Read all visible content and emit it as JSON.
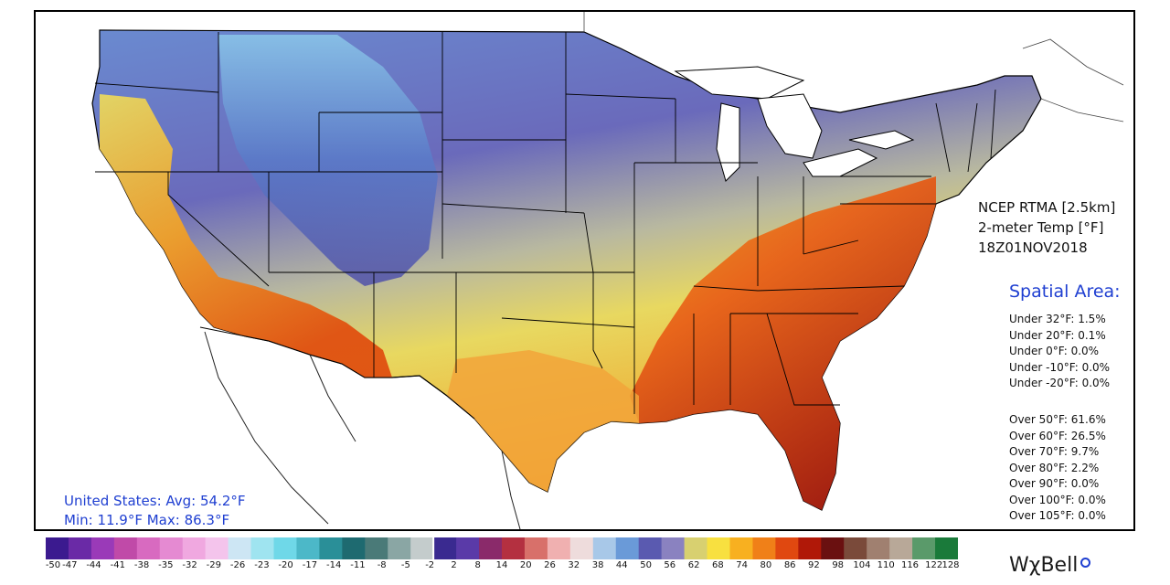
{
  "product": {
    "line1": "NCEP RTMA [2.5km]",
    "line2": "2-meter Temp [°F]",
    "line3": "18Z01NOV2018"
  },
  "spatial_area": {
    "title": "Spatial Area:",
    "under": [
      "Under 32°F: 1.5%",
      "Under 20°F: 0.1%",
      "Under 0°F: 0.0%",
      "Under -10°F: 0.0%",
      "Under -20°F: 0.0%"
    ],
    "over": [
      "Over 50°F: 61.6%",
      "Over 60°F: 26.5%",
      "Over 70°F: 9.7%",
      "Over 80°F: 2.2%",
      "Over 90°F: 0.0%",
      "Over 100°F: 0.0%",
      "Over 105°F: 0.0%"
    ]
  },
  "us_stats": {
    "line1": "United States: Avg:  54.2°F",
    "line2": "Min:  11.9°F Max:  86.3°F"
  },
  "colorbar": {
    "labels": [
      "-50",
      "-47",
      "-44",
      "-41",
      "-38",
      "-35",
      "-32",
      "-29",
      "-26",
      "-23",
      "-20",
      "-17",
      "-14",
      "-11",
      "-8",
      "-5",
      "-2",
      "2",
      "8",
      "14",
      "20",
      "26",
      "32",
      "38",
      "44",
      "50",
      "56",
      "62",
      "68",
      "74",
      "80",
      "86",
      "92",
      "98",
      "104",
      "110",
      "116",
      "122",
      "128"
    ],
    "stops": [
      "#3b1a8f",
      "#6a2aa6",
      "#9a3ab8",
      "#c04aa8",
      "#d86ac0",
      "#e58ad2",
      "#f0a8e0",
      "#f4c4ec",
      "#cde6f4",
      "#9fe4f0",
      "#6fd8e8",
      "#4cb8c8",
      "#2a8f98",
      "#1e6a70",
      "#4a7a78",
      "#8aa6a4",
      "#c4cccc",
      "#3a2a90",
      "#5a3aa8",
      "#8a2a6a",
      "#b43040",
      "#d8706a",
      "#f0b0b0",
      "#eedcdc",
      "#a8c8e8",
      "#6a9ad8",
      "#5a5ab0",
      "#8a82c0",
      "#d8d070",
      "#f8e040",
      "#f8b020",
      "#f08018",
      "#e04810",
      "#b01808",
      "#6a1010",
      "#7a4a3a",
      "#a08070",
      "#b8a898",
      "#5a9a6a",
      "#1a7a3a"
    ]
  },
  "logo": {
    "text": "WχBell"
  },
  "colors": {
    "stat_blue": "#1f3fd1",
    "cold": "#4a4aa8",
    "cool": "#7aa6d8",
    "mild": "#e8d860",
    "warm": "#f2a020",
    "hot": "#e05010",
    "hottest": "#801010"
  }
}
